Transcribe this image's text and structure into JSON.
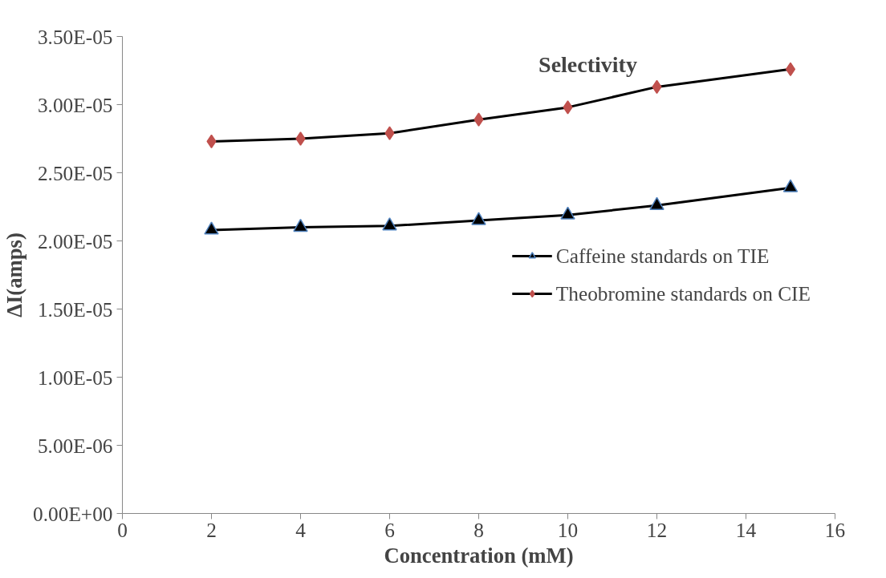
{
  "chart_data": {
    "type": "line",
    "title": "Selectivity",
    "xlabel": "Concentration (mM)",
    "ylabel": "ΔI(amps)",
    "x": [
      2,
      4,
      6,
      8,
      10,
      12,
      15
    ],
    "series": [
      {
        "name": "Caffeine standards on TIE",
        "color": "#000000",
        "marker": "triangle",
        "values": [
          2.08e-05,
          2.1e-05,
          2.11e-05,
          2.15e-05,
          2.19e-05,
          2.26e-05,
          2.39e-05
        ]
      },
      {
        "name": "Theobromine standards on CIE",
        "color": "#c0504d",
        "marker": "diamond",
        "values": [
          2.73e-05,
          2.75e-05,
          2.79e-05,
          2.89e-05,
          2.98e-05,
          3.13e-05,
          3.26e-05
        ]
      }
    ],
    "xlim": [
      0,
      16
    ],
    "xticks": [
      0,
      2,
      4,
      6,
      8,
      10,
      12,
      14,
      16
    ],
    "ylim": [
      0,
      3.5e-05
    ],
    "yticks": [
      {
        "value": 0,
        "label": "0.00E+00"
      },
      {
        "value": 5e-06,
        "label": "5.00E-06"
      },
      {
        "value": 1e-05,
        "label": "1.00E-05"
      },
      {
        "value": 1.5e-05,
        "label": "1.50E-05"
      },
      {
        "value": 2e-05,
        "label": "2.00E-05"
      },
      {
        "value": 2.5e-05,
        "label": "2.50E-05"
      },
      {
        "value": 3e-05,
        "label": "3.00E-05"
      },
      {
        "value": 3.5e-05,
        "label": "3.50E-05"
      }
    ],
    "grid": false,
    "legend": "right",
    "line_style": "solid"
  }
}
